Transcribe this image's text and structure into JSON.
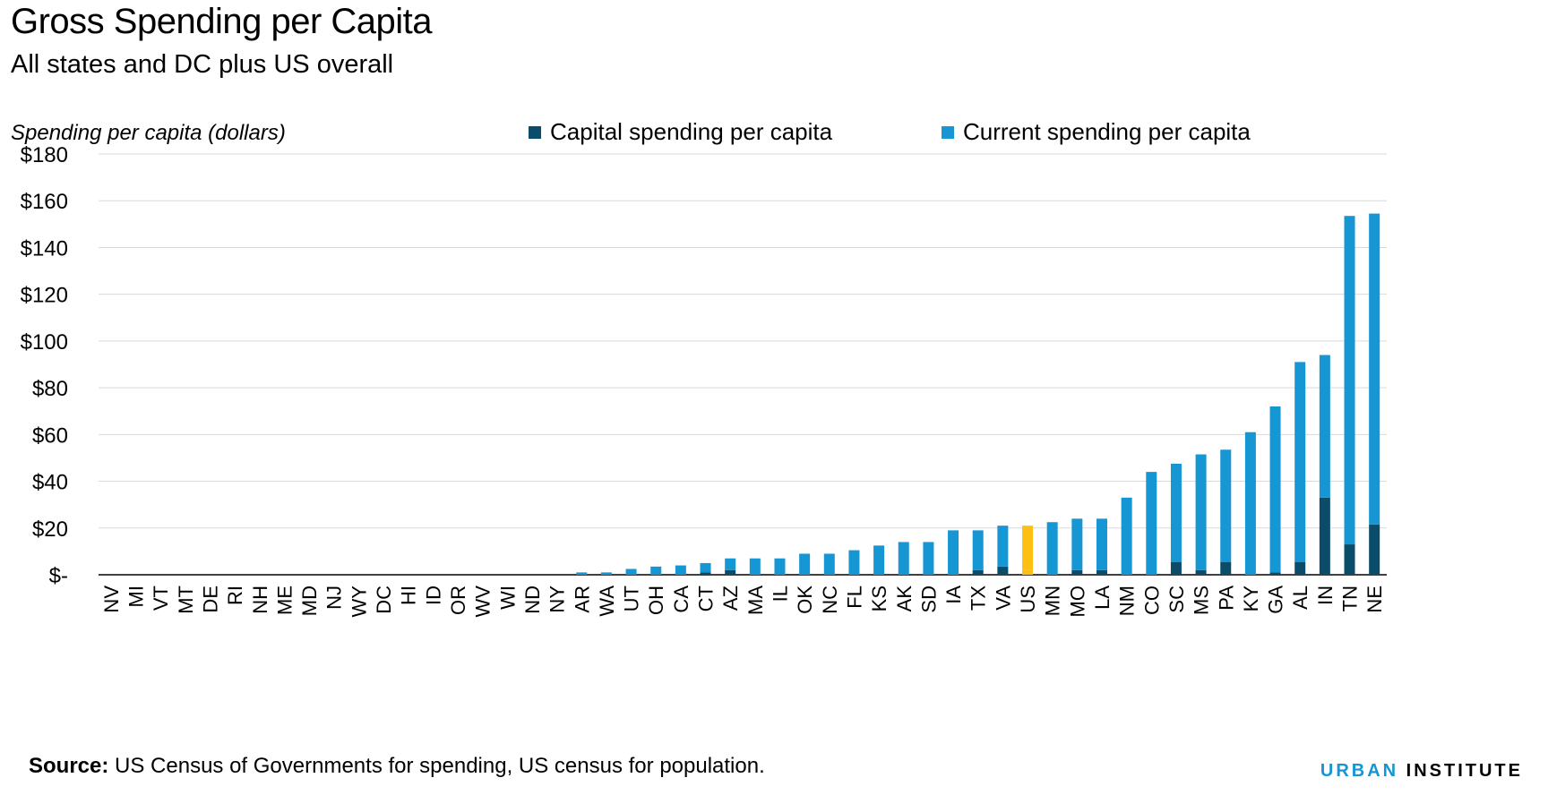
{
  "header": {
    "title": "Gross Spending per Capita",
    "subtitle": "All states and DC plus US overall",
    "ylabel": "Spending per capita (dollars)"
  },
  "legend": {
    "capital_label": "Capital spending per capita",
    "current_label": "Current spending per capita"
  },
  "footer": {
    "source_label": "Source:",
    "source_text": " US Census of Governments for spending, US census for population.",
    "brand_urban": "URBAN",
    "brand_institute": "INSTITUTE"
  },
  "colors": {
    "capital": "#0a4c6a",
    "current": "#1696d2",
    "highlight": "#fdbf11",
    "grid": "#d9d9d9"
  },
  "chart_data": {
    "type": "bar",
    "stacked": true,
    "title": "Gross Spending per Capita",
    "subtitle": "All states and DC plus US overall",
    "ylabel": "Spending per capita (dollars)",
    "xlabel": "",
    "ylim": [
      0,
      180
    ],
    "yticks": [
      0,
      20,
      40,
      60,
      80,
      100,
      120,
      140,
      160,
      180
    ],
    "ytick_labels": [
      "$-",
      "$20",
      "$40",
      "$60",
      "$80",
      "$100",
      "$120",
      "$140",
      "$160",
      "$180"
    ],
    "grid": true,
    "legend_position": "top",
    "highlight_category": "US",
    "categories": [
      "NV",
      "MI",
      "VT",
      "MT",
      "DE",
      "RI",
      "NH",
      "ME",
      "MD",
      "NJ",
      "WY",
      "DC",
      "HI",
      "ID",
      "OR",
      "WV",
      "WI",
      "ND",
      "NY",
      "AR",
      "WA",
      "UT",
      "OH",
      "CA",
      "CT",
      "AZ",
      "MA",
      "IL",
      "OK",
      "NC",
      "FL",
      "KS",
      "AK",
      "SD",
      "IA",
      "TX",
      "VA",
      "US",
      "MN",
      "MO",
      "LA",
      "NM",
      "CO",
      "SC",
      "MS",
      "PA",
      "KY",
      "GA",
      "AL",
      "IN",
      "TN",
      "NE"
    ],
    "series": [
      {
        "name": "Capital spending per capita",
        "values": [
          0,
          0,
          0,
          0,
          0,
          0,
          0,
          0,
          0,
          0,
          0,
          0,
          0,
          0,
          0,
          0,
          0,
          0,
          0,
          0,
          0,
          0,
          0,
          0,
          1,
          2,
          0,
          0,
          0,
          0,
          0,
          0,
          0,
          0,
          0,
          2,
          3.5,
          2,
          0,
          2,
          2,
          0,
          0,
          5.5,
          2,
          5.5,
          0,
          1,
          5.5,
          33,
          13,
          21.5
        ]
      },
      {
        "name": "Current spending per capita",
        "values": [
          0,
          0,
          0,
          0,
          0,
          0,
          0,
          0,
          0,
          0,
          0,
          0,
          0,
          0,
          0,
          0,
          0,
          0,
          0,
          1,
          1,
          2.5,
          3.5,
          4,
          4,
          5,
          7,
          7,
          9,
          9,
          10.5,
          12.5,
          14,
          14,
          19,
          17,
          17.5,
          19,
          22.5,
          22,
          22,
          33,
          44,
          42,
          49.5,
          48,
          61,
          71,
          85.5,
          61,
          140.5,
          133
        ]
      }
    ]
  }
}
